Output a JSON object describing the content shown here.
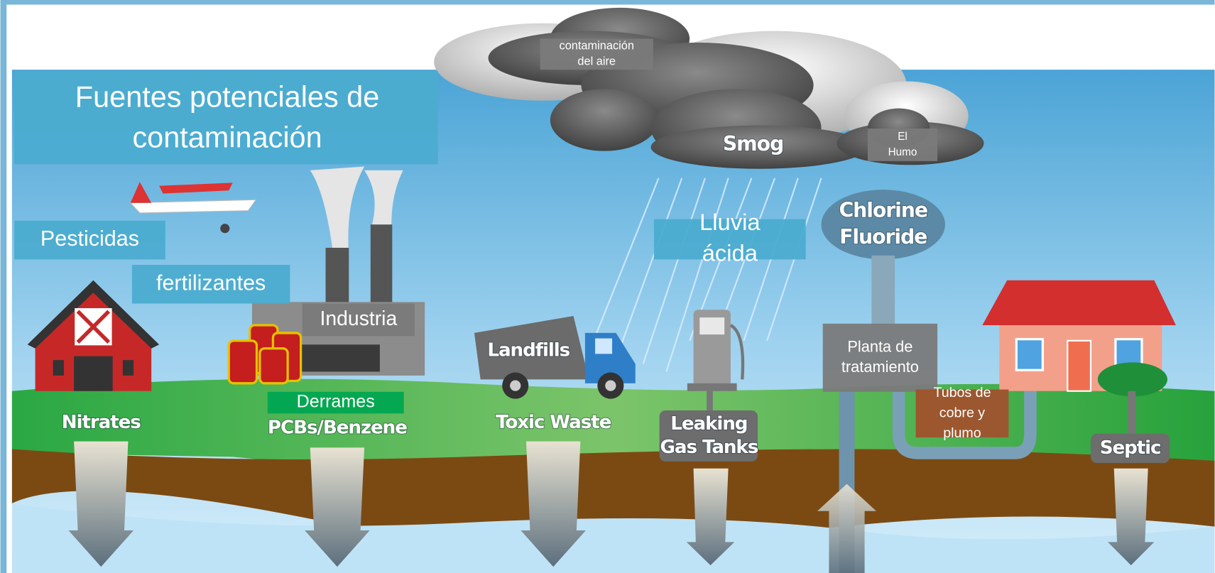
{
  "title": {
    "lines": [
      "Fuentes potenciales de",
      "contaminación"
    ]
  },
  "overlay_labels": [
    {
      "lines": [
        "contaminación",
        "del aire"
      ]
    },
    {
      "lines": [
        "El",
        "Humo"
      ]
    },
    {
      "lines": [
        "Pesticidas"
      ]
    },
    {
      "lines": [
        "fertilizantes"
      ]
    },
    {
      "lines": [
        "Industria"
      ]
    },
    {
      "lines": [
        "Lluvia",
        "ácida"
      ]
    },
    {
      "lines": [
        "Planta de",
        "tratamiento"
      ]
    },
    {
      "lines": [
        "Tubos de",
        "cobre y",
        "plumo"
      ]
    },
    {
      "lines": [
        "Derrames"
      ]
    }
  ],
  "scene_labels": [
    {
      "lines": [
        "Smog"
      ]
    },
    {
      "lines": [
        "Chlorine",
        "Fluoride"
      ]
    },
    {
      "lines": [
        "Landfills"
      ]
    },
    {
      "lines": [
        "Nitrates"
      ]
    },
    {
      "lines": [
        "PCBs/Benzene"
      ]
    },
    {
      "lines": [
        "Toxic Waste"
      ]
    },
    {
      "lines": [
        "Leaking",
        "Gas Tanks"
      ]
    },
    {
      "lines": [
        "Septic"
      ]
    }
  ]
}
